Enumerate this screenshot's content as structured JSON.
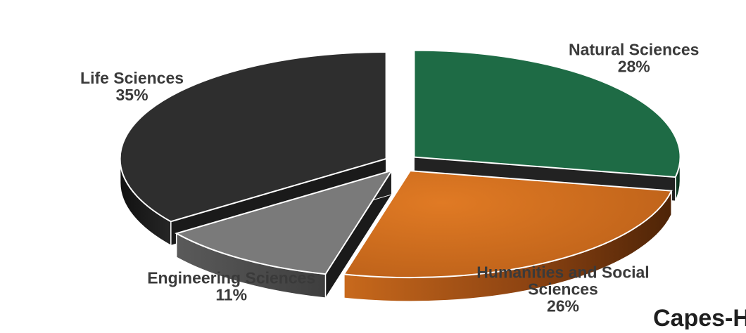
{
  "chart_data": {
    "type": "pie",
    "style": "3d-exploded",
    "categories": [
      "Natural Sciences",
      "Humanities and Social Sciences",
      "Engineering Sciences",
      "Life Sciences"
    ],
    "values": [
      28,
      26,
      11,
      35
    ],
    "unit": "%",
    "colors": [
      "#1e6b45",
      "#c46a1e",
      "#6f6f6f",
      "#2b2b2b"
    ],
    "slices": [
      {
        "name_lines": [
          "Natural Sciences"
        ],
        "pct_label": "28%"
      },
      {
        "name_lines": [
          "Humanities and Social",
          "Sciences"
        ],
        "pct_label": "26%"
      },
      {
        "name_lines": [
          "Engineering Sciences"
        ],
        "pct_label": "11%"
      },
      {
        "name_lines": [
          "Life Sciences"
        ],
        "pct_label": "35%"
      }
    ]
  },
  "caption": "Capes-Hu"
}
